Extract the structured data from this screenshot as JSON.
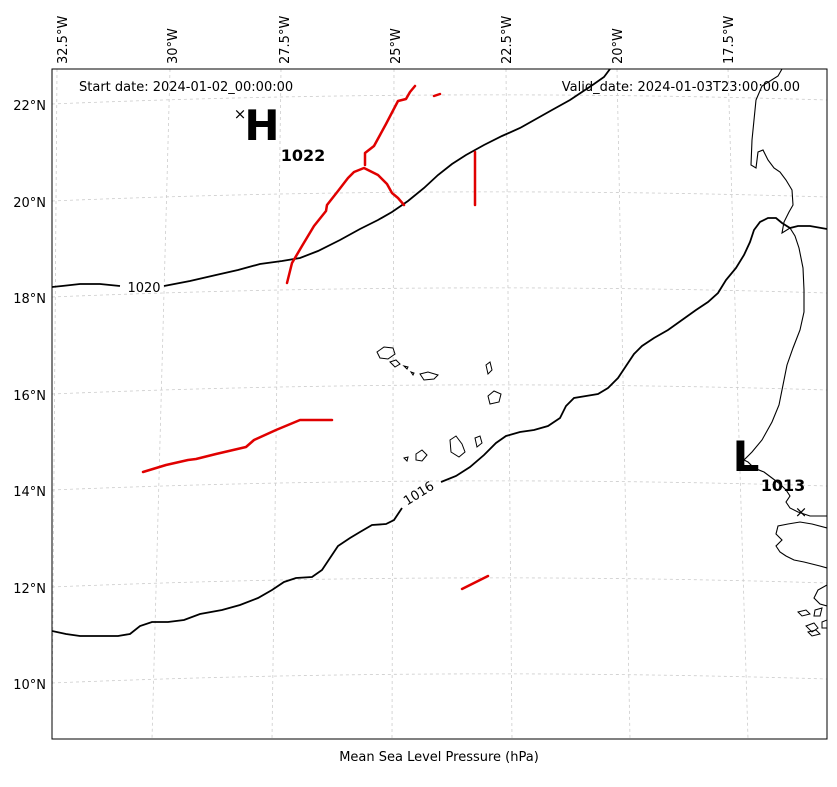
{
  "header": {
    "start_date": "Start date: 2024-01-02_00:00:00",
    "valid_date": "Valid_date: 2024-01-03T23:00:00.00"
  },
  "footer": {
    "title": "Mean Sea Level Pressure (hPa)"
  },
  "longitude_ticks": [
    "32.5°W",
    "30°W",
    "27.5°W",
    "25°W",
    "22.5°W",
    "20°W",
    "17.5°W"
  ],
  "latitude_ticks": [
    "22°N",
    "20°N",
    "18°N",
    "16°N",
    "14°N",
    "12°N",
    "10°N"
  ],
  "contour_labels": {
    "c1020": "1020",
    "c1016": "1016"
  },
  "pressure_centers": {
    "high": {
      "symbol": "H",
      "value": "1022",
      "marker": "×"
    },
    "low": {
      "symbol": "L",
      "value": "1013",
      "marker": "×"
    }
  },
  "colors": {
    "isobar": "#000000",
    "front": "#e00000",
    "grid": "#cccccc",
    "coastline": "#000000",
    "background": "#ffffff"
  },
  "icons": [
    "high-pressure-marker",
    "low-pressure-marker"
  ]
}
